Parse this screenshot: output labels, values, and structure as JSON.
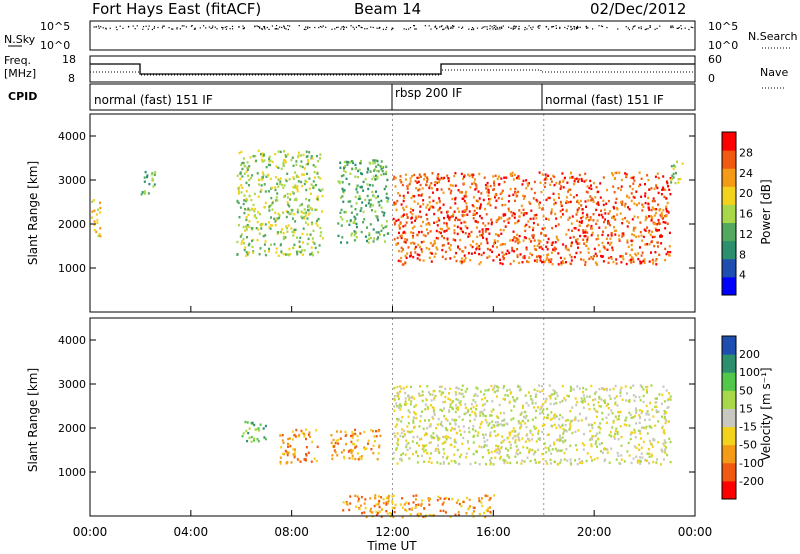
{
  "header": {
    "station": "Fort Hays East (fitACF)",
    "beam": "Beam 14",
    "date": "02/Dec/2012"
  },
  "noise_panel": {
    "left_label": "N.Sky",
    "right_label": "N.Search",
    "left_ticks": [
      "10^5",
      "10^0"
    ],
    "right_ticks": [
      "10^5",
      "10^0"
    ]
  },
  "freq_panel": {
    "left_label_line1": "Freq.",
    "left_label_line2": "[MHz]",
    "right_label": "Nave",
    "left_ticks": [
      "18",
      "8"
    ],
    "right_ticks": [
      "60",
      "0"
    ]
  },
  "cpid": {
    "label": "CPID",
    "segments": [
      {
        "start_hr": 0,
        "text": "normal (fast) 151 IF"
      },
      {
        "start_hr": 12,
        "text": "rbsp 200 IF"
      },
      {
        "start_hr": 18,
        "text": "normal (fast) 151 IF"
      }
    ]
  },
  "chart_data": [
    {
      "type": "heatmap",
      "title": "Power",
      "ylabel": "Slant Range [km]",
      "ylim": [
        0,
        4500
      ],
      "yticks": [
        "4000",
        "3000",
        "2000",
        "1000"
      ],
      "xlim_hours": [
        0,
        24
      ],
      "colorbar": {
        "label": "Power [dB]",
        "ticks": [
          "28",
          "24",
          "20",
          "16",
          "12",
          "8",
          "4"
        ],
        "colors": [
          "#0000ff",
          "#1e4fb0",
          "#2c8f6e",
          "#52a85e",
          "#a8d84a",
          "#f2d21c",
          "#f39a16",
          "#f05a10",
          "#ff0000"
        ]
      },
      "features": [
        {
          "t0": 0.0,
          "t1": 0.4,
          "r0": 1700,
          "r1": 2600,
          "level": 5
        },
        {
          "t0": 2.0,
          "t1": 2.6,
          "r0": 2700,
          "r1": 3300,
          "level": 3
        },
        {
          "t0": 5.8,
          "t1": 9.2,
          "r0": 1300,
          "r1": 3700,
          "level": 4
        },
        {
          "t0": 9.8,
          "t1": 11.8,
          "r0": 1600,
          "r1": 3500,
          "level": 3
        },
        {
          "t0": 12.0,
          "t1": 23.0,
          "r0": 1100,
          "r1": 3200,
          "level": 7
        },
        {
          "t0": 23.0,
          "t1": 23.5,
          "r0": 2900,
          "r1": 3500,
          "level": 4
        }
      ]
    },
    {
      "type": "heatmap",
      "title": "Velocity",
      "ylabel": "Slant Range [km]",
      "ylim": [
        0,
        4500
      ],
      "yticks": [
        "4000",
        "3000",
        "2000",
        "1000"
      ],
      "xlim_hours": [
        0,
        24
      ],
      "colorbar": {
        "label": "Velocity [m s⁻¹]",
        "ticks": [
          "200",
          "100",
          "50",
          "15",
          "-15",
          "-50",
          "-100",
          "-200"
        ],
        "colors": [
          "#ff0000",
          "#f05a10",
          "#f39a16",
          "#f2d21c",
          "#c8c8c0",
          "#a8d84a",
          "#52c84a",
          "#2c8f6e",
          "#1e4fb0"
        ]
      },
      "features": [
        {
          "t0": 6.0,
          "t1": 7.0,
          "r0": 1700,
          "r1": 2200,
          "level": 6
        },
        {
          "t0": 7.5,
          "t1": 9.0,
          "r0": 1200,
          "r1": 2000,
          "level": 2
        },
        {
          "t0": 9.5,
          "t1": 11.5,
          "r0": 1300,
          "r1": 2000,
          "level": 2
        },
        {
          "t0": 12.0,
          "t1": 23.0,
          "r0": 1200,
          "r1": 3000,
          "level": 4
        },
        {
          "t0": 10.0,
          "t1": 16.0,
          "r0": 0,
          "r1": 500,
          "level": 2
        }
      ]
    }
  ],
  "x_axis": {
    "ticks": [
      "00:00",
      "04:00",
      "08:00",
      "12:00",
      "16:00",
      "20:00",
      "00:00"
    ],
    "label": "Time UT"
  }
}
